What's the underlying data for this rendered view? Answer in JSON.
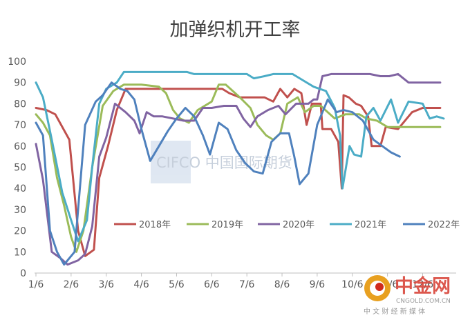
{
  "chart_data": {
    "type": "line",
    "title": "加弹织机开工率",
    "xlabel": "",
    "ylabel": "",
    "ylim": [
      0,
      100
    ],
    "yticks": [
      0,
      10,
      20,
      30,
      40,
      50,
      60,
      70,
      80,
      90,
      100
    ],
    "x_tick_labels": [
      "1/6",
      "2/6",
      "3/6",
      "4/6",
      "5/6",
      "6/6",
      "7/6",
      "8/6",
      "9/6",
      "10/6",
      "11/6",
      "12/6"
    ],
    "x_domain": [
      1,
      12.6
    ],
    "grid": false,
    "legend": "inside bottom",
    "series": [
      {
        "name": "2018年",
        "color": "#c0504d",
        "points": [
          [
            1.0,
            78
          ],
          [
            1.3,
            77
          ],
          [
            1.55,
            75
          ],
          [
            1.95,
            63
          ],
          [
            2.2,
            20
          ],
          [
            2.4,
            8
          ],
          [
            2.65,
            11
          ],
          [
            2.8,
            45
          ],
          [
            3.05,
            60
          ],
          [
            3.3,
            77
          ],
          [
            3.55,
            87
          ],
          [
            4.0,
            87
          ],
          [
            4.5,
            87
          ],
          [
            5.0,
            87
          ],
          [
            5.5,
            87
          ],
          [
            6.0,
            87
          ],
          [
            6.3,
            87
          ],
          [
            6.5,
            85
          ],
          [
            6.8,
            83
          ],
          [
            7.2,
            83
          ],
          [
            7.5,
            83
          ],
          [
            7.75,
            81
          ],
          [
            7.95,
            87
          ],
          [
            8.15,
            83
          ],
          [
            8.35,
            87
          ],
          [
            8.55,
            85
          ],
          [
            8.7,
            70
          ],
          [
            8.85,
            80
          ],
          [
            9.1,
            80
          ],
          [
            9.15,
            68
          ],
          [
            9.4,
            68
          ],
          [
            9.6,
            62
          ],
          [
            9.7,
            40
          ],
          [
            9.75,
            84
          ],
          [
            9.9,
            83
          ],
          [
            10.1,
            80
          ],
          [
            10.25,
            79
          ],
          [
            10.45,
            74
          ],
          [
            10.55,
            60
          ],
          [
            10.8,
            60
          ],
          [
            10.95,
            69
          ],
          [
            11.3,
            68
          ],
          [
            11.7,
            76
          ],
          [
            12.0,
            78
          ],
          [
            12.5,
            78
          ]
        ]
      },
      {
        "name": "2019年",
        "color": "#9bbb59",
        "points": [
          [
            1.0,
            75
          ],
          [
            1.2,
            71
          ],
          [
            1.4,
            65
          ],
          [
            1.6,
            45
          ],
          [
            1.8,
            32
          ],
          [
            2.0,
            17
          ],
          [
            2.15,
            10
          ],
          [
            2.35,
            20
          ],
          [
            2.6,
            50
          ],
          [
            2.9,
            79
          ],
          [
            3.2,
            86
          ],
          [
            3.5,
            89
          ],
          [
            4.0,
            89
          ],
          [
            4.5,
            88
          ],
          [
            4.7,
            85
          ],
          [
            4.9,
            77
          ],
          [
            5.1,
            73
          ],
          [
            5.35,
            71
          ],
          [
            5.6,
            77
          ],
          [
            6.0,
            81
          ],
          [
            6.2,
            89
          ],
          [
            6.4,
            89
          ],
          [
            6.6,
            86
          ],
          [
            6.8,
            83
          ],
          [
            7.1,
            78
          ],
          [
            7.3,
            70
          ],
          [
            7.55,
            65
          ],
          [
            7.75,
            63
          ],
          [
            7.95,
            66
          ],
          [
            8.15,
            80
          ],
          [
            8.45,
            83
          ],
          [
            8.65,
            76
          ],
          [
            8.9,
            79
          ],
          [
            9.1,
            79
          ],
          [
            9.3,
            76
          ],
          [
            9.5,
            73
          ],
          [
            9.8,
            75
          ],
          [
            10.2,
            75
          ],
          [
            10.4,
            73
          ],
          [
            10.7,
            72
          ],
          [
            11.0,
            69
          ],
          [
            11.5,
            69
          ],
          [
            12.0,
            69
          ],
          [
            12.5,
            69
          ]
        ]
      },
      {
        "name": "2020年",
        "color": "#8064a2",
        "points": [
          [
            1.0,
            61
          ],
          [
            1.2,
            44
          ],
          [
            1.45,
            10
          ],
          [
            1.7,
            7
          ],
          [
            1.9,
            4
          ],
          [
            2.2,
            6
          ],
          [
            2.4,
            9
          ],
          [
            2.6,
            22
          ],
          [
            2.8,
            55
          ],
          [
            3.0,
            64
          ],
          [
            3.25,
            80
          ],
          [
            3.55,
            76
          ],
          [
            3.8,
            72
          ],
          [
            3.95,
            66
          ],
          [
            4.15,
            76
          ],
          [
            4.35,
            74
          ],
          [
            4.6,
            74
          ],
          [
            4.9,
            73
          ],
          [
            5.2,
            72
          ],
          [
            5.5,
            72
          ],
          [
            5.75,
            78
          ],
          [
            6.0,
            78
          ],
          [
            6.35,
            79
          ],
          [
            6.7,
            79
          ],
          [
            6.9,
            73
          ],
          [
            7.1,
            69
          ],
          [
            7.3,
            74
          ],
          [
            7.6,
            77
          ],
          [
            7.9,
            79
          ],
          [
            8.1,
            75
          ],
          [
            8.4,
            80
          ],
          [
            8.75,
            80
          ],
          [
            8.9,
            82
          ],
          [
            9.0,
            82
          ],
          [
            9.15,
            93
          ],
          [
            9.4,
            94
          ],
          [
            10.0,
            94
          ],
          [
            10.5,
            94
          ],
          [
            10.8,
            93
          ],
          [
            11.05,
            93
          ],
          [
            11.3,
            94
          ],
          [
            11.6,
            90
          ],
          [
            12.0,
            90
          ],
          [
            12.5,
            90
          ]
        ]
      },
      {
        "name": "2021年",
        "color": "#4bacc6",
        "points": [
          [
            1.0,
            90
          ],
          [
            1.2,
            83
          ],
          [
            1.45,
            63
          ],
          [
            1.75,
            38
          ],
          [
            2.0,
            25
          ],
          [
            2.2,
            15
          ],
          [
            2.45,
            25
          ],
          [
            2.6,
            50
          ],
          [
            2.8,
            80
          ],
          [
            3.0,
            87
          ],
          [
            3.3,
            90
          ],
          [
            3.5,
            95
          ],
          [
            4.0,
            95
          ],
          [
            4.5,
            95
          ],
          [
            5.0,
            95
          ],
          [
            5.3,
            95
          ],
          [
            5.5,
            94
          ],
          [
            6.0,
            94
          ],
          [
            6.5,
            94
          ],
          [
            7.0,
            94
          ],
          [
            7.2,
            92
          ],
          [
            7.5,
            93
          ],
          [
            7.75,
            94
          ],
          [
            8.3,
            94
          ],
          [
            8.6,
            91
          ],
          [
            8.9,
            88
          ],
          [
            9.25,
            86
          ],
          [
            9.5,
            78
          ],
          [
            9.65,
            65
          ],
          [
            9.72,
            40
          ],
          [
            9.82,
            50
          ],
          [
            9.92,
            60
          ],
          [
            10.05,
            56
          ],
          [
            10.25,
            55
          ],
          [
            10.4,
            74
          ],
          [
            10.6,
            78
          ],
          [
            10.8,
            72
          ],
          [
            11.1,
            82
          ],
          [
            11.3,
            71
          ],
          [
            11.6,
            81
          ],
          [
            12.0,
            80
          ],
          [
            12.2,
            73
          ],
          [
            12.4,
            74
          ],
          [
            12.6,
            73
          ]
        ]
      },
      {
        "name": "2022年",
        "color": "#4f81bd",
        "points": [
          [
            1.0,
            71
          ],
          [
            1.2,
            65
          ],
          [
            1.4,
            20
          ],
          [
            1.6,
            10
          ],
          [
            1.8,
            4
          ],
          [
            2.1,
            10
          ],
          [
            2.4,
            70
          ],
          [
            2.7,
            81
          ],
          [
            2.9,
            84
          ],
          [
            3.15,
            90
          ],
          [
            3.4,
            87
          ],
          [
            3.6,
            86
          ],
          [
            3.8,
            82
          ],
          [
            4.0,
            68
          ],
          [
            4.25,
            53
          ],
          [
            4.5,
            60
          ],
          [
            4.75,
            67
          ],
          [
            5.0,
            73
          ],
          [
            5.25,
            78
          ],
          [
            5.5,
            74
          ],
          [
            5.75,
            65
          ],
          [
            5.95,
            56
          ],
          [
            6.2,
            71
          ],
          [
            6.45,
            68
          ],
          [
            6.7,
            58
          ],
          [
            6.95,
            52
          ],
          [
            7.2,
            48
          ],
          [
            7.45,
            47
          ],
          [
            7.7,
            62
          ],
          [
            7.95,
            66
          ],
          [
            8.2,
            66
          ],
          [
            8.35,
            55
          ],
          [
            8.5,
            42
          ],
          [
            8.75,
            47
          ],
          [
            9.0,
            70
          ],
          [
            9.3,
            82
          ],
          [
            9.55,
            76
          ],
          [
            9.75,
            77
          ],
          [
            10.0,
            76
          ],
          [
            10.3,
            72
          ],
          [
            10.6,
            63
          ],
          [
            10.85,
            60
          ],
          [
            11.1,
            57
          ],
          [
            11.35,
            55
          ]
        ]
      }
    ]
  },
  "watermark": {
    "cifco_text": "CIFCO 中国国际期货",
    "brand_cn": "中金网",
    "brand_url": "CNGOLD.COM.CN",
    "brand_slogan": "中 文 财 经 新 媒 体"
  }
}
